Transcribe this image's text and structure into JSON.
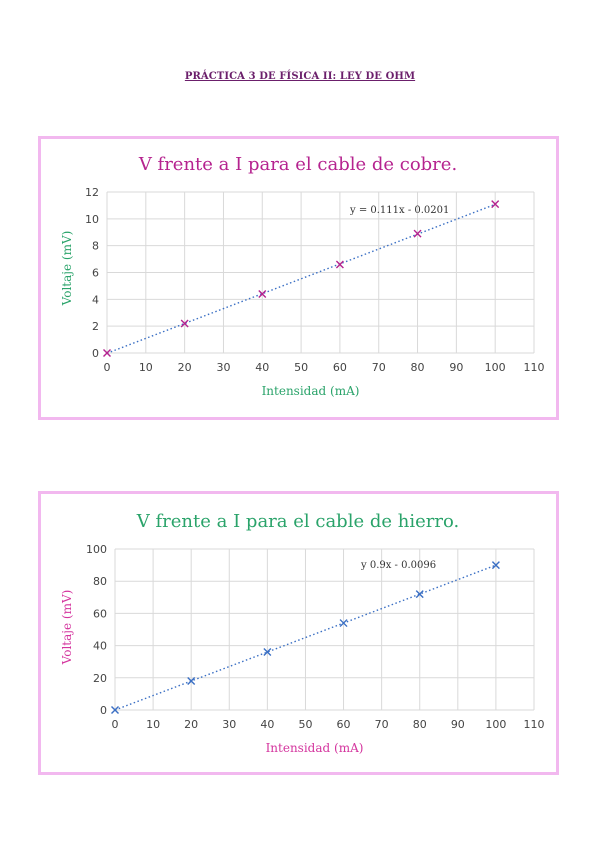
{
  "page_title": "PRÁCTICA 3 DE FÍSICA II: LEY DE OHM",
  "chart_data": [
    {
      "type": "scatter",
      "title": "V frente a I para el cable de cobre.",
      "xlabel": "Intensidad (mA)",
      "ylabel": "Voltaje (mV)",
      "xlim": [
        0,
        110
      ],
      "ylim": [
        0,
        12
      ],
      "x_ticks": [
        "0",
        "10",
        "20",
        "30",
        "40",
        "50",
        "60",
        "70",
        "80",
        "90",
        "100",
        "110"
      ],
      "y_ticks": [
        "0",
        "2",
        "4",
        "6",
        "8",
        "10",
        "12"
      ],
      "x": [
        0,
        20,
        40,
        60,
        80,
        100
      ],
      "y": [
        0,
        2.2,
        4.4,
        6.6,
        8.9,
        11.1
      ],
      "trendline": {
        "slope": 0.111,
        "intercept": -0.0201,
        "label": "y = 0.111x - 0.0201"
      },
      "grid": true,
      "colors": {
        "title": "#b5238f",
        "axis_labels": "#2aa36a",
        "marker": "#b5238f",
        "trend": "#3a6fc4"
      }
    },
    {
      "type": "scatter",
      "title": "V frente  a I para el cable de hierro.",
      "xlabel": "Intensidad (mA)",
      "ylabel": "Voltaje (mV)",
      "xlim": [
        0,
        110
      ],
      "ylim": [
        0,
        100
      ],
      "x_ticks": [
        "0",
        "10",
        "20",
        "30",
        "40",
        "50",
        "60",
        "70",
        "80",
        "90",
        "100",
        "110"
      ],
      "y_ticks": [
        "0",
        "20",
        "40",
        "60",
        "80",
        "100"
      ],
      "x": [
        0,
        20,
        40,
        60,
        80,
        100
      ],
      "y": [
        0,
        18,
        36,
        54,
        72,
        90
      ],
      "trendline": {
        "slope": 0.9,
        "intercept": -0.0096,
        "label": "y   0.9x - 0.0096"
      },
      "grid": true,
      "colors": {
        "title": "#2aa36a",
        "axis_labels": "#d4359e",
        "marker": "#3a6fc4",
        "trend": "#3a6fc4"
      }
    }
  ]
}
